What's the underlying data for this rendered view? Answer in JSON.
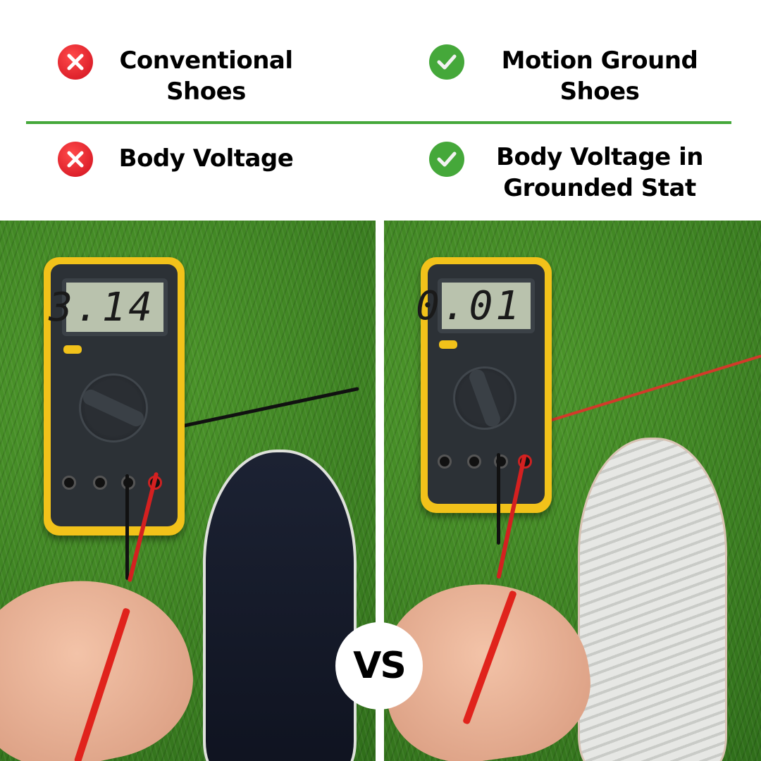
{
  "header": {
    "left": {
      "title": "Conventional Shoes",
      "title_line1": "Conventional",
      "title_line2": "Shoes",
      "row2": "Body Voltage",
      "icon": "x-circle-icon",
      "icon_color": "#e0192b"
    },
    "right": {
      "title": "Motion Ground Shoes",
      "title_line1": "Motion Ground",
      "title_line2": "Shoes",
      "row2_line1": "Body Voltage in",
      "row2_line2": "Grounded Stat",
      "icon": "check-circle-icon",
      "icon_color": "#45a83a"
    },
    "rule_color": "#45a83a"
  },
  "photos": {
    "left": {
      "meter_reading": "3.14",
      "shoe": "dark navy canvas sneaker"
    },
    "right": {
      "meter_reading": "0.01",
      "shoe": "white mesh sneaker"
    }
  },
  "badge": {
    "label": "VS"
  }
}
